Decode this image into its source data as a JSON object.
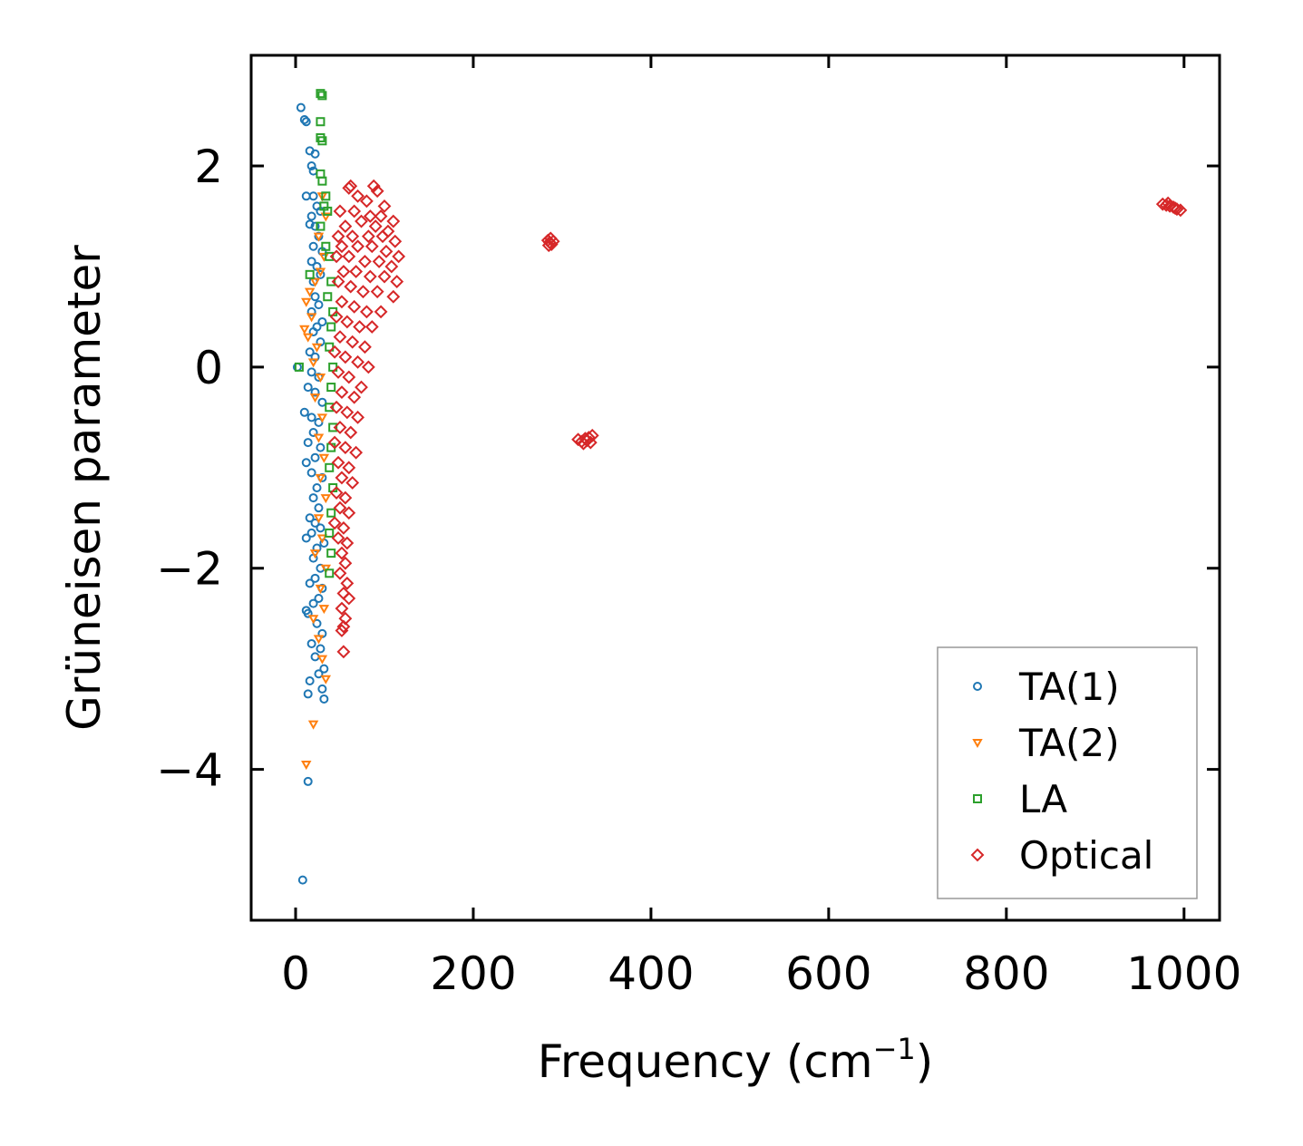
{
  "chart_data": {
    "type": "scatter",
    "xlabel": "Frequency (cm",
    "xlabel_sup": "−1",
    "xlabel_close": ")",
    "ylabel": "Grüneisen parameter",
    "xlim": [
      -50,
      1040
    ],
    "ylim": [
      -5.5,
      3.1
    ],
    "xticks": [
      0,
      200,
      400,
      600,
      800,
      1000
    ],
    "xtick_labels": [
      "0",
      "200",
      "400",
      "600",
      "800",
      "1000"
    ],
    "yticks": [
      2,
      0,
      -2,
      -4
    ],
    "ytick_labels": [
      "2",
      "0",
      "−2",
      "−4"
    ],
    "legend_position": "lower-right",
    "series": [
      {
        "name": "TA(1)",
        "marker": "circle",
        "color": "#1f77b4",
        "points": [
          [
            6,
            2.58
          ],
          [
            10,
            2.46
          ],
          [
            12,
            2.44
          ],
          [
            16,
            2.15
          ],
          [
            22,
            2.12
          ],
          [
            18,
            2.0
          ],
          [
            20,
            1.95
          ],
          [
            12,
            1.7
          ],
          [
            20,
            1.7
          ],
          [
            24,
            1.6
          ],
          [
            18,
            1.5
          ],
          [
            28,
            1.55
          ],
          [
            16,
            1.42
          ],
          [
            22,
            1.4
          ],
          [
            26,
            1.3
          ],
          [
            20,
            1.2
          ],
          [
            30,
            1.15
          ],
          [
            18,
            1.05
          ],
          [
            24,
            1.0
          ],
          [
            28,
            0.92
          ],
          [
            20,
            0.85
          ],
          [
            22,
            0.7
          ],
          [
            26,
            0.62
          ],
          [
            18,
            0.55
          ],
          [
            30,
            0.45
          ],
          [
            24,
            0.4
          ],
          [
            20,
            0.35
          ],
          [
            28,
            0.25
          ],
          [
            16,
            0.15
          ],
          [
            22,
            0.1
          ],
          [
            2,
            0.0
          ],
          [
            18,
            -0.05
          ],
          [
            26,
            -0.1
          ],
          [
            14,
            -0.2
          ],
          [
            22,
            -0.25
          ],
          [
            30,
            -0.35
          ],
          [
            10,
            -0.45
          ],
          [
            18,
            -0.5
          ],
          [
            26,
            -0.55
          ],
          [
            20,
            -0.65
          ],
          [
            14,
            -0.75
          ],
          [
            28,
            -0.8
          ],
          [
            22,
            -0.9
          ],
          [
            12,
            -0.95
          ],
          [
            18,
            -1.05
          ],
          [
            30,
            -1.1
          ],
          [
            24,
            -1.2
          ],
          [
            20,
            -1.3
          ],
          [
            26,
            -1.4
          ],
          [
            16,
            -1.5
          ],
          [
            22,
            -1.55
          ],
          [
            28,
            -1.6
          ],
          [
            18,
            -1.65
          ],
          [
            12,
            -1.7
          ],
          [
            32,
            -1.75
          ],
          [
            24,
            -1.8
          ],
          [
            20,
            -1.9
          ],
          [
            28,
            -2.0
          ],
          [
            22,
            -2.1
          ],
          [
            16,
            -2.15
          ],
          [
            30,
            -2.2
          ],
          [
            26,
            -2.3
          ],
          [
            20,
            -2.35
          ],
          [
            12,
            -2.42
          ],
          [
            14,
            -2.45
          ],
          [
            24,
            -2.55
          ],
          [
            30,
            -2.65
          ],
          [
            18,
            -2.75
          ],
          [
            28,
            -2.8
          ],
          [
            22,
            -2.88
          ],
          [
            32,
            -3.0
          ],
          [
            26,
            -3.05
          ],
          [
            16,
            -3.12
          ],
          [
            30,
            -3.2
          ],
          [
            14,
            -3.25
          ],
          [
            32,
            -3.3
          ],
          [
            14,
            -4.12
          ],
          [
            8,
            -5.1
          ]
        ]
      },
      {
        "name": "TA(2)",
        "marker": "triangle-down",
        "color": "#ff7f0e",
        "points": [
          [
            30,
            1.7
          ],
          [
            34,
            1.5
          ],
          [
            26,
            1.3
          ],
          [
            32,
            1.1
          ],
          [
            28,
            0.95
          ],
          [
            22,
            0.85
          ],
          [
            16,
            0.75
          ],
          [
            12,
            0.65
          ],
          [
            18,
            0.5
          ],
          [
            10,
            0.38
          ],
          [
            14,
            0.3
          ],
          [
            24,
            0.2
          ],
          [
            20,
            0.05
          ],
          [
            28,
            -0.1
          ],
          [
            22,
            -0.3
          ],
          [
            30,
            -0.5
          ],
          [
            26,
            -0.7
          ],
          [
            32,
            -0.9
          ],
          [
            28,
            -1.1
          ],
          [
            34,
            -1.3
          ],
          [
            26,
            -1.5
          ],
          [
            30,
            -1.7
          ],
          [
            22,
            -1.85
          ],
          [
            34,
            -2.0
          ],
          [
            28,
            -2.2
          ],
          [
            32,
            -2.4
          ],
          [
            20,
            -2.5
          ],
          [
            26,
            -2.7
          ],
          [
            30,
            -2.9
          ],
          [
            34,
            -3.1
          ],
          [
            20,
            -3.55
          ],
          [
            12,
            -3.95
          ]
        ]
      },
      {
        "name": "LA",
        "marker": "square",
        "color": "#2ca02c",
        "points": [
          [
            28,
            2.72
          ],
          [
            30,
            2.7
          ],
          [
            28,
            2.44
          ],
          [
            28,
            2.28
          ],
          [
            30,
            2.25
          ],
          [
            28,
            1.92
          ],
          [
            30,
            1.85
          ],
          [
            34,
            1.7
          ],
          [
            32,
            1.6
          ],
          [
            36,
            1.55
          ],
          [
            28,
            1.4
          ],
          [
            34,
            1.2
          ],
          [
            38,
            1.1
          ],
          [
            16,
            0.92
          ],
          [
            40,
            0.85
          ],
          [
            36,
            0.7
          ],
          [
            42,
            0.55
          ],
          [
            40,
            0.4
          ],
          [
            38,
            0.2
          ],
          [
            42,
            0.0
          ],
          [
            40,
            -0.2
          ],
          [
            38,
            -0.4
          ],
          [
            42,
            -0.6
          ],
          [
            40,
            -0.8
          ],
          [
            38,
            -1.0
          ],
          [
            42,
            -1.2
          ],
          [
            40,
            -1.45
          ],
          [
            38,
            -1.65
          ],
          [
            40,
            -1.85
          ],
          [
            38,
            -2.05
          ],
          [
            4,
            0.0
          ]
        ]
      },
      {
        "name": "Optical",
        "marker": "diamond",
        "color": "#d62728",
        "points": [
          [
            60,
            1.78
          ],
          [
            62,
            1.8
          ],
          [
            88,
            1.8
          ],
          [
            92,
            1.75
          ],
          [
            70,
            1.7
          ],
          [
            80,
            1.65
          ],
          [
            100,
            1.6
          ],
          [
            50,
            1.55
          ],
          [
            66,
            1.55
          ],
          [
            84,
            1.5
          ],
          [
            96,
            1.5
          ],
          [
            110,
            1.45
          ],
          [
            56,
            1.4
          ],
          [
            74,
            1.45
          ],
          [
            90,
            1.4
          ],
          [
            104,
            1.35
          ],
          [
            48,
            1.3
          ],
          [
            64,
            1.3
          ],
          [
            82,
            1.3
          ],
          [
            98,
            1.3
          ],
          [
            112,
            1.25
          ],
          [
            52,
            1.2
          ],
          [
            70,
            1.2
          ],
          [
            86,
            1.2
          ],
          [
            102,
            1.15
          ],
          [
            116,
            1.1
          ],
          [
            46,
            1.1
          ],
          [
            60,
            1.1
          ],
          [
            78,
            1.05
          ],
          [
            94,
            1.05
          ],
          [
            108,
            1.0
          ],
          [
            54,
            0.95
          ],
          [
            68,
            0.95
          ],
          [
            84,
            0.9
          ],
          [
            100,
            0.9
          ],
          [
            114,
            0.85
          ],
          [
            48,
            0.85
          ],
          [
            62,
            0.8
          ],
          [
            76,
            0.75
          ],
          [
            92,
            0.75
          ],
          [
            110,
            0.7
          ],
          [
            52,
            0.65
          ],
          [
            66,
            0.6
          ],
          [
            80,
            0.55
          ],
          [
            96,
            0.55
          ],
          [
            46,
            0.5
          ],
          [
            58,
            0.45
          ],
          [
            72,
            0.4
          ],
          [
            86,
            0.4
          ],
          [
            50,
            0.3
          ],
          [
            64,
            0.25
          ],
          [
            78,
            0.2
          ],
          [
            44,
            0.15
          ],
          [
            56,
            0.1
          ],
          [
            70,
            0.05
          ],
          [
            82,
            0.0
          ],
          [
            48,
            -0.05
          ],
          [
            60,
            -0.1
          ],
          [
            74,
            -0.2
          ],
          [
            52,
            -0.25
          ],
          [
            66,
            -0.3
          ],
          [
            46,
            -0.4
          ],
          [
            58,
            -0.45
          ],
          [
            70,
            -0.5
          ],
          [
            50,
            -0.6
          ],
          [
            62,
            -0.65
          ],
          [
            44,
            -0.75
          ],
          [
            56,
            -0.8
          ],
          [
            68,
            -0.85
          ],
          [
            48,
            -0.95
          ],
          [
            60,
            -1.0
          ],
          [
            52,
            -1.1
          ],
          [
            64,
            -1.15
          ],
          [
            46,
            -1.25
          ],
          [
            56,
            -1.3
          ],
          [
            50,
            -1.4
          ],
          [
            60,
            -1.45
          ],
          [
            44,
            -1.55
          ],
          [
            54,
            -1.6
          ],
          [
            48,
            -1.7
          ],
          [
            58,
            -1.75
          ],
          [
            52,
            -1.85
          ],
          [
            56,
            -1.95
          ],
          [
            50,
            -2.05
          ],
          [
            58,
            -2.15
          ],
          [
            54,
            -2.25
          ],
          [
            60,
            -2.3
          ],
          [
            52,
            -2.4
          ],
          [
            56,
            -2.5
          ],
          [
            54,
            -2.58
          ],
          [
            52,
            -2.62
          ],
          [
            54,
            -2.83
          ],
          [
            284,
            1.26
          ],
          [
            286,
            1.24
          ],
          [
            288,
            1.22
          ],
          [
            290,
            1.25
          ],
          [
            287,
            1.28
          ],
          [
            285,
            1.21
          ],
          [
            318,
            -0.72
          ],
          [
            322,
            -0.74
          ],
          [
            326,
            -0.71
          ],
          [
            330,
            -0.7
          ],
          [
            334,
            -0.68
          ],
          [
            324,
            -0.76
          ],
          [
            328,
            -0.73
          ],
          [
            332,
            -0.75
          ],
          [
            976,
            1.62
          ],
          [
            980,
            1.61
          ],
          [
            984,
            1.6
          ],
          [
            988,
            1.59
          ],
          [
            992,
            1.57
          ],
          [
            996,
            1.56
          ],
          [
            982,
            1.63
          ],
          [
            990,
            1.58
          ]
        ]
      }
    ]
  }
}
